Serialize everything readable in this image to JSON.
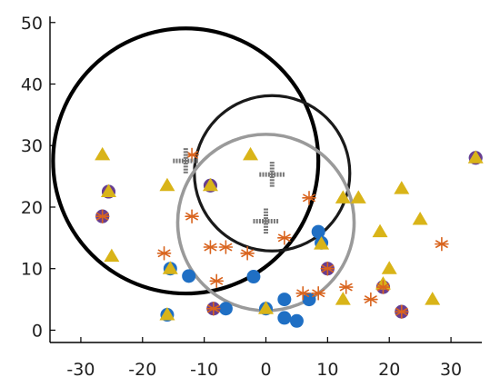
{
  "chart_data": {
    "type": "scatter",
    "title": "",
    "xlabel": "",
    "ylabel": "",
    "xlim": [
      -35,
      35
    ],
    "ylim": [
      -2,
      51
    ],
    "xticks": [
      -30,
      -20,
      -10,
      0,
      10,
      20,
      30
    ],
    "yticks": [
      0,
      10,
      20,
      30,
      40,
      50
    ],
    "grid": false,
    "legend": "none",
    "colors": {
      "blue": "#1f6fc4",
      "purple": "#6a3d8f",
      "yellow": "#d9b418",
      "orange": "#d9641e",
      "black": "#000000",
      "dark": "#1a1a1a",
      "gray": "#9a9a9a",
      "cross": "#777777"
    },
    "series": [
      {
        "marker": "circle",
        "color": "#1f6fc4",
        "points": [
          [
            -26.5,
            18.5
          ],
          [
            -25.5,
            22.5
          ],
          [
            -16,
            2.5
          ],
          [
            -15.5,
            10
          ],
          [
            -12.5,
            8.8
          ],
          [
            -9,
            23.5
          ],
          [
            -8.5,
            3.5
          ],
          [
            -6.5,
            3.5
          ],
          [
            -2,
            8.7
          ],
          [
            0,
            3.5
          ],
          [
            3,
            5
          ],
          [
            3,
            2
          ],
          [
            5,
            1.5
          ],
          [
            7,
            5
          ],
          [
            8.5,
            16
          ],
          [
            9,
            14.2
          ],
          [
            10,
            10
          ],
          [
            19,
            7
          ],
          [
            22,
            3
          ],
          [
            34,
            28
          ]
        ]
      },
      {
        "marker": "purple-dot",
        "color": "#6a3d8f",
        "points": [
          [
            -26.5,
            18.5
          ],
          [
            -25.5,
            22.5
          ],
          [
            -9,
            23.5
          ],
          [
            -8.5,
            3.5
          ],
          [
            10,
            10
          ],
          [
            19,
            7
          ],
          [
            22,
            3
          ],
          [
            34,
            28
          ]
        ]
      },
      {
        "marker": "triangle",
        "color": "#d9b418",
        "points": [
          [
            -26.5,
            28.5
          ],
          [
            -25.5,
            22.5
          ],
          [
            -25,
            12
          ],
          [
            -16,
            23.5
          ],
          [
            -16,
            2.5
          ],
          [
            -15.5,
            10
          ],
          [
            -9,
            23.5
          ],
          [
            -2.5,
            28.5
          ],
          [
            0,
            3.5
          ],
          [
            9,
            14
          ],
          [
            12.5,
            21.5
          ],
          [
            12.5,
            5
          ],
          [
            15,
            21.5
          ],
          [
            18.5,
            16
          ],
          [
            19,
            7.5
          ],
          [
            20,
            10
          ],
          [
            22,
            23
          ],
          [
            25,
            18
          ],
          [
            27,
            5
          ],
          [
            34,
            28
          ]
        ]
      },
      {
        "marker": "asterisk",
        "color": "#d9641e",
        "points": [
          [
            -26.5,
            18.5
          ],
          [
            -16.5,
            12.5
          ],
          [
            -12,
            28.5
          ],
          [
            -12,
            18.5
          ],
          [
            -9,
            13.5
          ],
          [
            -8,
            8
          ],
          [
            -6.5,
            13.5
          ],
          [
            -8.5,
            3.5
          ],
          [
            -3,
            12.5
          ],
          [
            3,
            15
          ],
          [
            6,
            6
          ],
          [
            7,
            21.5
          ],
          [
            8.5,
            6
          ],
          [
            10,
            10
          ],
          [
            13,
            7
          ],
          [
            17,
            5
          ],
          [
            19,
            7
          ],
          [
            22,
            3
          ],
          [
            28.5,
            14
          ]
        ]
      },
      {
        "marker": "cross",
        "color": "#777777",
        "points": [
          [
            -13,
            27.5
          ],
          [
            1,
            25.3
          ],
          [
            0,
            17.7
          ]
        ]
      }
    ],
    "circles": [
      {
        "name": "",
        "color": "#000000",
        "cx": -13,
        "cy": 27.5,
        "r": 21.5,
        "lw": 4.2
      },
      {
        "name": "",
        "color": "#1a1a1a",
        "cx": 1,
        "cy": 25.5,
        "r": 12.6,
        "lw": 3.2
      },
      {
        "name": "",
        "color": "#9a9a9a",
        "cx": 0,
        "cy": 17.5,
        "r": 14.3,
        "lw": 3.6
      }
    ]
  }
}
